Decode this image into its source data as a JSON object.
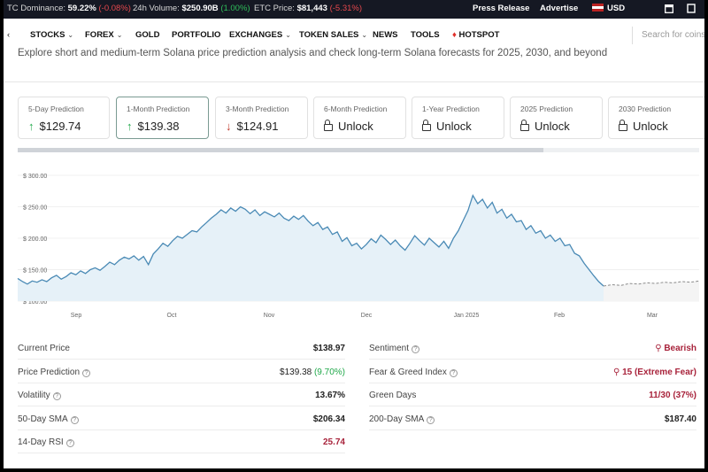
{
  "ticker": {
    "dominance_label": "TC Dominance:",
    "dominance_value": "59.22%",
    "dominance_change": "(-0.08%)",
    "volume_label": "24h Volume:",
    "volume_value": "$250.90B",
    "volume_change": "(1.00%)",
    "eth_label": "ETC Price:",
    "eth_value": "$81,443",
    "eth_change": "(-5.31%)",
    "press_release": "Press Release",
    "advertise": "Advertise",
    "currency": "USD"
  },
  "nav": {
    "items": [
      {
        "label": "STOCKS",
        "dropdown": true
      },
      {
        "label": "FOREX",
        "dropdown": true
      },
      {
        "label": "GOLD",
        "dropdown": false
      },
      {
        "label": "PORTFOLIO",
        "dropdown": false
      },
      {
        "label": "EXCHANGES",
        "dropdown": true
      },
      {
        "label": "TOKEN SALES",
        "dropdown": true
      },
      {
        "label": "NEWS",
        "dropdown": false
      },
      {
        "label": "TOOLS",
        "dropdown": false
      },
      {
        "label": "HOTSPOT",
        "dropdown": false
      }
    ],
    "search_placeholder": "Search for coins"
  },
  "intro": "Explore short and medium-term Solana price prediction analysis and check long-term Solana forecasts for 2025, 2030, and beyond",
  "cards": [
    {
      "label": "5-Day Prediction",
      "value": "$129.74",
      "trend": "up"
    },
    {
      "label": "1-Month Prediction",
      "value": "$139.38",
      "trend": "up"
    },
    {
      "label": "3-Month Prediction",
      "value": "$124.91",
      "trend": "down"
    },
    {
      "label": "6-Month Prediction",
      "value": "Unlock",
      "trend": "lock"
    },
    {
      "label": "1-Year Prediction",
      "value": "Unlock",
      "trend": "lock"
    },
    {
      "label": "2025 Prediction",
      "value": "Unlock",
      "trend": "lock"
    },
    {
      "label": "2030 Prediction",
      "value": "Unlock",
      "trend": "lock"
    }
  ],
  "colors": {
    "accent_line": "#4a8ab5",
    "area_fill": "#e6f1f8",
    "forecast_line": "#8b8b8b",
    "bearish": "#a8233b",
    "up_green": "#20a84a"
  },
  "chart_data": {
    "type": "line",
    "xlabels": [
      "Sep",
      "Oct",
      "Nov",
      "Dec",
      "Jan 2025",
      "Feb",
      "Mar"
    ],
    "yticks": [
      "$ 100.00",
      "$ 150.00",
      "$ 200.00",
      "$ 250.00",
      "$ 300.00"
    ],
    "ylim": [
      100,
      300
    ],
    "series": [
      {
        "values": [
          136,
          131,
          127,
          132,
          130,
          134,
          131,
          137,
          141,
          135,
          139,
          145,
          142,
          148,
          144,
          150,
          153,
          149,
          155,
          162,
          158,
          165,
          170,
          167,
          172,
          165,
          171,
          158,
          175,
          183,
          192,
          187,
          196,
          203,
          200,
          206,
          212,
          210,
          218,
          225,
          232,
          238,
          245,
          240,
          248,
          243,
          250,
          246,
          239,
          245,
          236,
          242,
          238,
          234,
          240,
          232,
          228,
          235,
          230,
          236,
          227,
          220,
          225,
          214,
          218,
          206,
          210,
          195,
          201,
          188,
          192,
          183,
          190,
          199,
          193,
          205,
          198,
          190,
          197,
          188,
          181,
          192,
          204,
          196,
          189,
          200,
          193,
          186,
          195,
          184,
          200,
          212,
          228,
          244,
          268,
          255,
          262,
          248,
          257,
          240,
          246,
          232,
          238,
          226,
          228,
          214,
          220,
          208,
          212,
          200,
          205,
          195,
          200,
          188,
          190,
          176,
          172,
          160,
          150,
          140,
          131,
          124
        ]
      },
      {
        "values": [
          124,
          126,
          125,
          128,
          127,
          129,
          128,
          130,
          129,
          131,
          130,
          132
        ]
      }
    ]
  },
  "stats_left": [
    {
      "label": "Current Price",
      "value": "$138.97",
      "help": false
    },
    {
      "label": "Price Prediction",
      "value": "$139.38",
      "extra": "(9.70%)",
      "help": true
    },
    {
      "label": "Volatility",
      "value": "13.67%",
      "help": true
    },
    {
      "label": "50-Day SMA",
      "value": "$206.34",
      "help": true
    },
    {
      "label": "14-Day RSI",
      "value": "25.74",
      "help": true
    }
  ],
  "stats_right": [
    {
      "label": "Sentiment",
      "value": "Bearish",
      "help": true
    },
    {
      "label": "Fear & Greed Index",
      "value": "15 (Extreme Fear)",
      "help": true
    },
    {
      "label": "Green Days",
      "value": "11/30 (37%)",
      "help": false
    },
    {
      "label": "200-Day SMA",
      "value": "$187.40",
      "help": true
    }
  ]
}
